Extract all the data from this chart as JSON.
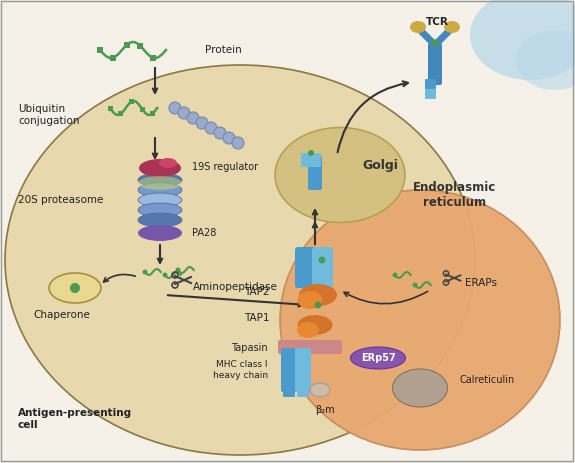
{
  "bg_color": "#f5f0e8",
  "cell_color": "#e8d8ae",
  "er_color": "#e8a870",
  "er_color_border": "#c8885a",
  "golgi_color": "#d4c080",
  "golgi_border": "#b0a050",
  "tcell_color": "#b8d8e8",
  "cell_border": "#8B7840",
  "green": "#4a9a50",
  "blue_tap": "#4a9acc",
  "blue_light": "#70bbdd",
  "purple_erp": "#8855aa",
  "pink_tapasin": "#cc8888",
  "orange_tap": "#d4732a",
  "gray_calret": "#b0a090",
  "dark_text": "#222222",
  "ubiq_bead": "#9aaacc",
  "proteasome_blue1": "#5577aa",
  "proteasome_blue2": "#7799cc",
  "proteasome_blue3": "#99bbdd",
  "proteasome_purple": "#7755aa",
  "regulator_red": "#993344",
  "chaperone_fill": "#e8d890",
  "chaperone_border": "#a89040",
  "tcr_blue": "#4488bb",
  "tcr_yellow": "#ccaa44",
  "labels": {
    "protein": "Protein",
    "ubiquitin": "Ubiquitin\nconjugation",
    "regulator": "19S regulator",
    "proteasome": "20S proteasome",
    "pa28": "PA28",
    "chaperone": "Chaperone",
    "aminopeptidase": "Aminopeptidase",
    "tap2": "TAP2",
    "tap1": "TAP1",
    "tapasin": "Tapasin",
    "mhc": "MHC class I\nheavy chain",
    "b2m": "β₂m",
    "erp57": "ERp57",
    "calreticulin": "Calreticulin",
    "eraps": "ERAPs",
    "golgi": "Golgi",
    "er": "Endoplasmic\nreticulum",
    "tcr": "TCR",
    "apc": "Antigen-presenting\ncell"
  },
  "figsize": [
    5.75,
    4.63
  ],
  "dpi": 100
}
